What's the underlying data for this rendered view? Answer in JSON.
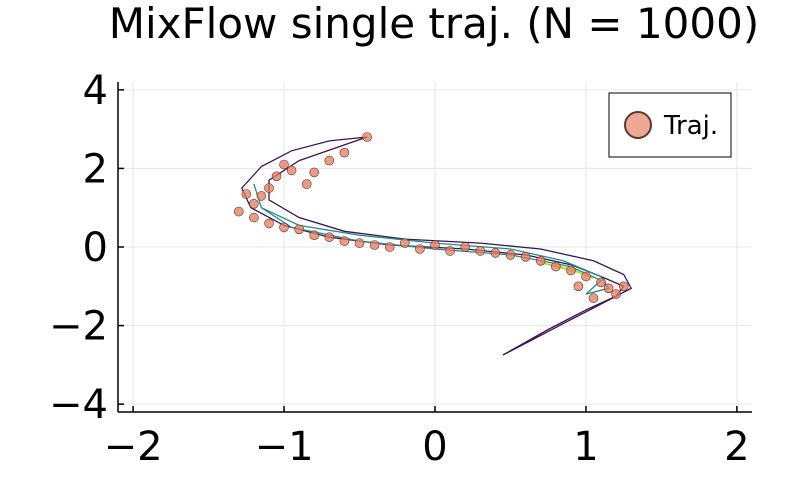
{
  "chart_data": {
    "type": "scatter",
    "title": "MixFlow single traj. (N = 1000)",
    "xlabel": "",
    "ylabel": "",
    "xlim": [
      -2.1,
      2.1
    ],
    "ylim": [
      -4.2,
      4.2
    ],
    "xticks": [
      -2,
      -1,
      0,
      1,
      2
    ],
    "yticks": [
      -4,
      -2,
      0,
      2,
      4
    ],
    "xtick_labels": [
      "−2",
      "−1",
      "0",
      "1",
      "2"
    ],
    "ytick_labels": [
      "−4",
      "−2",
      "0",
      "2",
      "4"
    ],
    "grid": true,
    "legend": {
      "position": "top-right",
      "entries": [
        "Traj."
      ]
    },
    "colors": {
      "points": "#e8795a",
      "points_edge": "#5a3a2e",
      "contour_outer": "#3b1455",
      "contour_mid": "#1f8f8c",
      "contour_inner": "#b8d83a"
    },
    "contour_paths": [
      [
        [
          -0.45,
          2.8
        ],
        [
          -0.7,
          2.7
        ],
        [
          -0.95,
          2.45
        ],
        [
          -1.15,
          2.05
        ],
        [
          -1.28,
          1.5
        ],
        [
          -1.22,
          1.0
        ],
        [
          -1.0,
          0.55
        ],
        [
          -0.7,
          0.25
        ],
        [
          -0.3,
          0.05
        ],
        [
          0.2,
          -0.05
        ],
        [
          0.6,
          -0.2
        ],
        [
          0.9,
          -0.45
        ],
        [
          1.1,
          -0.75
        ],
        [
          1.25,
          -1.0
        ],
        [
          1.2,
          -1.25
        ],
        [
          1.0,
          -1.6
        ],
        [
          0.75,
          -2.1
        ],
        [
          0.45,
          -2.75
        ],
        [
          0.6,
          -2.45
        ],
        [
          0.85,
          -1.95
        ],
        [
          1.1,
          -1.45
        ],
        [
          1.3,
          -1.05
        ],
        [
          1.25,
          -0.7
        ],
        [
          1.05,
          -0.35
        ],
        [
          0.7,
          -0.05
        ],
        [
          0.3,
          0.1
        ],
        [
          -0.2,
          0.2
        ],
        [
          -0.6,
          0.4
        ],
        [
          -0.9,
          0.75
        ],
        [
          -1.1,
          1.2
        ],
        [
          -1.1,
          1.7
        ],
        [
          -0.9,
          2.2
        ],
        [
          -0.6,
          2.6
        ],
        [
          -0.45,
          2.8
        ]
      ],
      [
        [
          -1.2,
          1.6
        ],
        [
          -1.15,
          1.0
        ],
        [
          -0.9,
          0.55
        ],
        [
          -0.5,
          0.3
        ],
        [
          0.0,
          0.1
        ],
        [
          0.5,
          -0.05
        ],
        [
          0.85,
          -0.35
        ],
        [
          1.1,
          -0.75
        ],
        [
          1.15,
          -1.05
        ],
        [
          1.0,
          -1.2
        ],
        [
          1.1,
          -0.85
        ],
        [
          0.9,
          -0.5
        ],
        [
          0.5,
          -0.2
        ],
        [
          0.0,
          -0.05
        ],
        [
          -0.5,
          0.15
        ],
        [
          -0.95,
          0.5
        ],
        [
          -1.15,
          1.0
        ],
        [
          -1.2,
          1.6
        ]
      ],
      [
        [
          0.7,
          -0.4
        ],
        [
          0.9,
          -0.55
        ],
        [
          1.05,
          -0.8
        ],
        [
          0.95,
          -0.65
        ],
        [
          0.7,
          -0.4
        ]
      ]
    ],
    "series": [
      {
        "name": "Traj.",
        "points": [
          [
            -0.45,
            2.8
          ],
          [
            -0.6,
            2.4
          ],
          [
            -0.7,
            2.2
          ],
          [
            -0.8,
            1.9
          ],
          [
            -0.85,
            1.6
          ],
          [
            -0.95,
            1.95
          ],
          [
            -1.0,
            2.1
          ],
          [
            -1.05,
            1.8
          ],
          [
            -1.1,
            1.5
          ],
          [
            -1.15,
            1.3
          ],
          [
            -1.2,
            1.1
          ],
          [
            -1.25,
            1.35
          ],
          [
            -1.3,
            0.9
          ],
          [
            -1.2,
            0.75
          ],
          [
            -1.1,
            0.6
          ],
          [
            -1.0,
            0.5
          ],
          [
            -0.9,
            0.45
          ],
          [
            -0.8,
            0.3
          ],
          [
            -0.7,
            0.25
          ],
          [
            -0.6,
            0.15
          ],
          [
            -0.5,
            0.1
          ],
          [
            -0.4,
            0.05
          ],
          [
            -0.3,
            0.0
          ],
          [
            -0.2,
            0.1
          ],
          [
            -0.1,
            -0.05
          ],
          [
            0.0,
            0.05
          ],
          [
            0.1,
            -0.1
          ],
          [
            0.2,
            0.0
          ],
          [
            0.3,
            -0.1
          ],
          [
            0.4,
            -0.15
          ],
          [
            0.5,
            -0.2
          ],
          [
            0.6,
            -0.25
          ],
          [
            0.7,
            -0.35
          ],
          [
            0.8,
            -0.5
          ],
          [
            0.9,
            -0.6
          ],
          [
            1.0,
            -0.75
          ],
          [
            1.1,
            -0.9
          ],
          [
            1.15,
            -1.05
          ],
          [
            1.2,
            -1.2
          ],
          [
            1.25,
            -1.0
          ],
          [
            1.05,
            -1.3
          ],
          [
            0.95,
            -1.0
          ]
        ]
      }
    ]
  }
}
